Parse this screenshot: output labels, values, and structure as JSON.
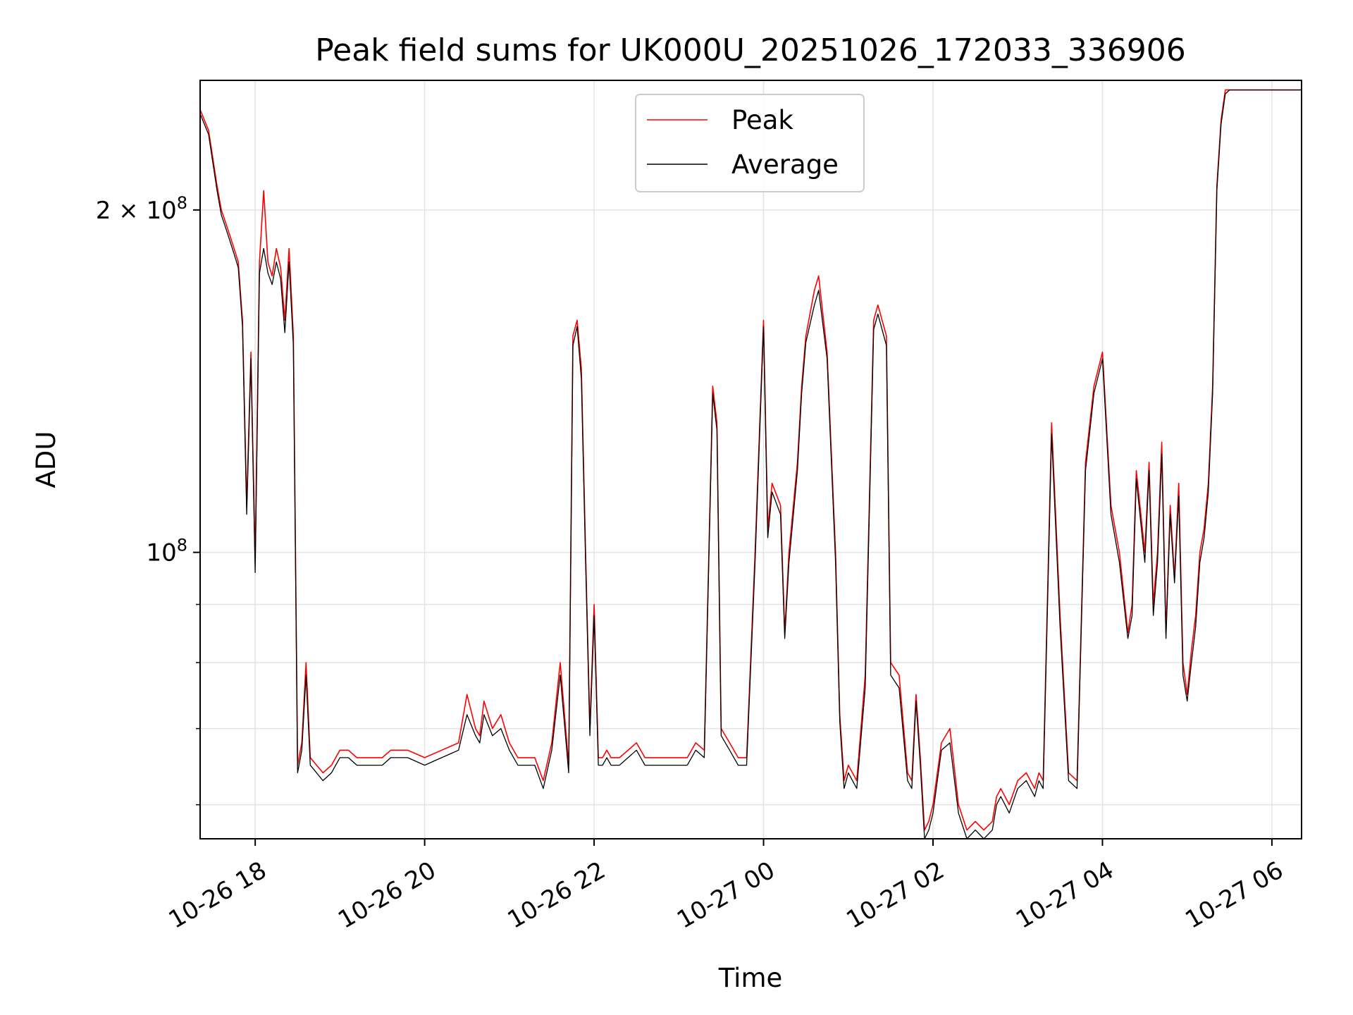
{
  "chart_data": {
    "type": "line",
    "title": "Peak field sums for UK000U_20251026_172033_336906",
    "xlabel": "Time",
    "ylabel": "ADU",
    "yscale": "log",
    "ylim": [
      56000000,
      260000000
    ],
    "xlim": [
      17.35,
      30.35
    ],
    "x_unit": "hours since 2025-10-26 00:00",
    "grid": true,
    "legend_position": "upper-center",
    "x_ticks": [
      {
        "value": 18,
        "label": "10-26 18"
      },
      {
        "value": 20,
        "label": "10-26 20"
      },
      {
        "value": 22,
        "label": "10-26 22"
      },
      {
        "value": 24,
        "label": "10-27 00"
      },
      {
        "value": 26,
        "label": "10-27 02"
      },
      {
        "value": 28,
        "label": "10-27 04"
      },
      {
        "value": 30,
        "label": "10-27 06"
      }
    ],
    "y_major_ticks": [
      {
        "value": 100000000,
        "base": "10",
        "exp": "8"
      },
      {
        "value": 200000000,
        "base": "2 × 10",
        "exp": "8"
      }
    ],
    "y_minor_ticks": [
      60000000,
      70000000,
      80000000,
      90000000
    ],
    "series": [
      {
        "name": "Peak",
        "color": "#ff0000",
        "x": [
          17.35,
          17.45,
          17.55,
          17.6,
          17.65,
          17.7,
          17.75,
          17.8,
          17.85,
          17.9,
          17.95,
          18.0,
          18.05,
          18.1,
          18.15,
          18.2,
          18.25,
          18.3,
          18.35,
          18.4,
          18.45,
          18.5,
          18.55,
          18.6,
          18.65,
          18.8,
          18.9,
          18.95,
          19.0,
          19.1,
          19.2,
          19.3,
          19.4,
          19.5,
          19.6,
          19.65,
          19.8,
          20.0,
          20.2,
          20.4,
          20.5,
          20.6,
          20.65,
          20.7,
          20.8,
          20.9,
          21.0,
          21.1,
          21.2,
          21.3,
          21.4,
          21.5,
          21.6,
          21.7,
          21.75,
          21.8,
          21.85,
          21.9,
          21.95,
          22.0,
          22.05,
          22.1,
          22.15,
          22.2,
          22.3,
          22.5,
          22.6,
          22.7,
          22.8,
          22.9,
          23.0,
          23.1,
          23.2,
          23.3,
          23.4,
          23.45,
          23.5,
          23.6,
          23.7,
          23.8,
          23.9,
          24.0,
          24.05,
          24.1,
          24.2,
          24.25,
          24.3,
          24.4,
          24.45,
          24.5,
          24.6,
          24.65,
          24.75,
          24.85,
          24.9,
          24.95,
          25.0,
          25.1,
          25.2,
          25.3,
          25.35,
          25.45,
          25.5,
          25.6,
          25.7,
          25.75,
          25.8,
          25.85,
          25.9,
          25.95,
          26.0,
          26.1,
          26.2,
          26.3,
          26.4,
          26.5,
          26.6,
          26.7,
          26.75,
          26.8,
          26.9,
          27.0,
          27.1,
          27.2,
          27.25,
          27.3,
          27.4,
          27.5,
          27.6,
          27.7,
          27.8,
          27.9,
          28.0,
          28.1,
          28.2,
          28.3,
          28.35,
          28.4,
          28.5,
          28.55,
          28.6,
          28.65,
          28.7,
          28.75,
          28.8,
          28.85,
          28.9,
          28.95,
          29.0,
          29.05,
          29.1,
          29.15,
          29.2,
          29.25,
          29.3,
          29.35,
          29.4,
          29.45,
          29.5,
          29.6,
          29.7,
          29.8,
          29.9,
          30.0,
          30.1,
          30.2,
          30.35
        ],
        "y": [
          245,
          235,
          210,
          200,
          195,
          190,
          185,
          180,
          160,
          110,
          150,
          98,
          180,
          208,
          180,
          175,
          185,
          178,
          160,
          185,
          155,
          65,
          68,
          80,
          66,
          64,
          65,
          66,
          67,
          67,
          66,
          66,
          66,
          66,
          67,
          67,
          67,
          66,
          67,
          68,
          75,
          70,
          69,
          74,
          70,
          72,
          68,
          66,
          66,
          66,
          63,
          68,
          80,
          65,
          155,
          160,
          145,
          100,
          70,
          90,
          66,
          66,
          67,
          66,
          66,
          68,
          66,
          66,
          66,
          66,
          66,
          66,
          68,
          67,
          140,
          130,
          70,
          68,
          66,
          66,
          100,
          160,
          105,
          115,
          110,
          85,
          100,
          120,
          140,
          155,
          170,
          175,
          150,
          100,
          72,
          63,
          65,
          63,
          78,
          160,
          165,
          155,
          80,
          78,
          64,
          63,
          75,
          66,
          57,
          58,
          60,
          68,
          70,
          60,
          57,
          58,
          57,
          58,
          61,
          62,
          60,
          63,
          64,
          62,
          64,
          63,
          130,
          88,
          64,
          63,
          120,
          140,
          150,
          110,
          100,
          85,
          90,
          118,
          100,
          120,
          90,
          100,
          125,
          85,
          110,
          95,
          115,
          80,
          75,
          82,
          88,
          100,
          105,
          115,
          140,
          210,
          240,
          255,
          255,
          255,
          255,
          255,
          255,
          255,
          255,
          255,
          255
        ],
        "y_unit": "million ADU"
      },
      {
        "name": "Average",
        "color": "#000000",
        "x": [
          17.35,
          17.45,
          17.55,
          17.6,
          17.65,
          17.7,
          17.75,
          17.8,
          17.85,
          17.9,
          17.95,
          18.0,
          18.05,
          18.1,
          18.15,
          18.2,
          18.25,
          18.3,
          18.35,
          18.4,
          18.45,
          18.5,
          18.55,
          18.6,
          18.65,
          18.8,
          18.9,
          18.95,
          19.0,
          19.1,
          19.2,
          19.3,
          19.4,
          19.5,
          19.6,
          19.65,
          19.8,
          20.0,
          20.2,
          20.4,
          20.5,
          20.6,
          20.65,
          20.7,
          20.8,
          20.9,
          21.0,
          21.1,
          21.2,
          21.3,
          21.4,
          21.5,
          21.6,
          21.7,
          21.75,
          21.8,
          21.85,
          21.9,
          21.95,
          22.0,
          22.05,
          22.1,
          22.15,
          22.2,
          22.3,
          22.5,
          22.6,
          22.7,
          22.8,
          22.9,
          23.0,
          23.1,
          23.2,
          23.3,
          23.4,
          23.45,
          23.5,
          23.6,
          23.7,
          23.8,
          23.9,
          24.0,
          24.05,
          24.1,
          24.2,
          24.25,
          24.3,
          24.4,
          24.45,
          24.5,
          24.6,
          24.65,
          24.75,
          24.85,
          24.9,
          24.95,
          25.0,
          25.1,
          25.2,
          25.3,
          25.35,
          25.45,
          25.5,
          25.6,
          25.7,
          25.75,
          25.8,
          25.85,
          25.9,
          25.95,
          26.0,
          26.1,
          26.2,
          26.3,
          26.4,
          26.5,
          26.6,
          26.7,
          26.75,
          26.8,
          26.9,
          27.0,
          27.1,
          27.2,
          27.25,
          27.3,
          27.4,
          27.5,
          27.6,
          27.7,
          27.8,
          27.9,
          28.0,
          28.1,
          28.2,
          28.3,
          28.35,
          28.4,
          28.5,
          28.55,
          28.6,
          28.65,
          28.7,
          28.75,
          28.8,
          28.85,
          28.9,
          28.95,
          29.0,
          29.05,
          29.1,
          29.15,
          29.2,
          29.25,
          29.3,
          29.35,
          29.4,
          29.45,
          29.5,
          29.6,
          29.7,
          29.8,
          29.9,
          30.0,
          30.1,
          30.2,
          30.35
        ],
        "y": [
          243,
          233,
          208,
          198,
          193,
          188,
          183,
          178,
          158,
          108,
          148,
          96,
          176,
          185,
          176,
          172,
          180,
          174,
          156,
          180,
          152,
          64,
          67,
          78,
          65,
          63,
          64,
          65,
          66,
          66,
          65,
          65,
          65,
          65,
          66,
          66,
          66,
          65,
          66,
          67,
          72,
          69,
          68,
          72,
          69,
          70,
          67,
          65,
          65,
          65,
          62,
          67,
          78,
          64,
          152,
          158,
          142,
          98,
          69,
          88,
          65,
          65,
          66,
          65,
          65,
          67,
          65,
          65,
          65,
          65,
          65,
          65,
          67,
          66,
          138,
          128,
          69,
          67,
          65,
          65,
          98,
          158,
          103,
          113,
          108,
          84,
          98,
          118,
          138,
          153,
          165,
          170,
          148,
          98,
          71,
          62,
          64,
          62,
          76,
          157,
          162,
          152,
          78,
          76,
          63,
          62,
          74,
          65,
          56,
          57,
          59,
          67,
          68,
          59,
          56,
          57,
          56,
          57,
          60,
          61,
          59,
          62,
          63,
          61,
          63,
          62,
          127,
          86,
          63,
          62,
          118,
          138,
          148,
          108,
          98,
          84,
          88,
          116,
          98,
          118,
          88,
          98,
          122,
          84,
          108,
          94,
          112,
          78,
          74,
          80,
          86,
          98,
          103,
          113,
          138,
          208,
          238,
          253,
          255,
          255,
          255,
          255,
          255,
          255,
          255,
          255,
          255
        ],
        "y_unit": "million ADU"
      }
    ]
  }
}
